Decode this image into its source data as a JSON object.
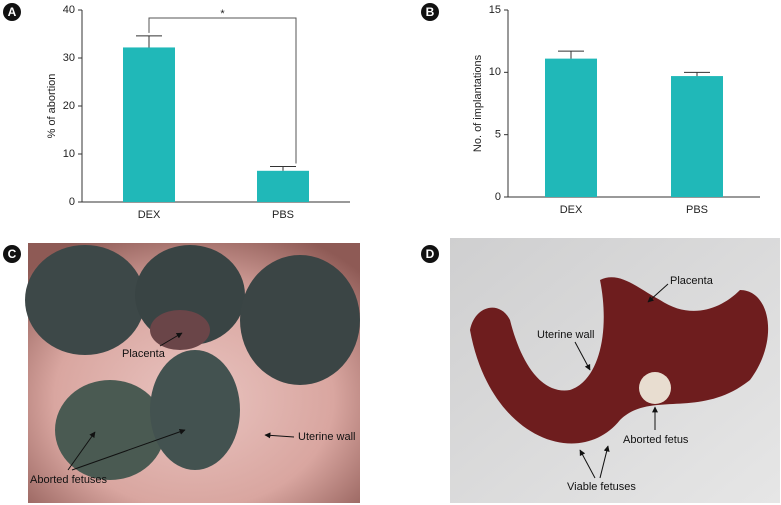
{
  "chart_data": [
    {
      "type": "bar",
      "panel": "A",
      "ylabel": "% of abortion",
      "categories": [
        "DEX",
        "PBS"
      ],
      "values": [
        32.2,
        6.5
      ],
      "errors": [
        2.4,
        0.9
      ],
      "color": "#20b8b8",
      "ylim": [
        0,
        40
      ],
      "yticks": [
        0,
        10,
        20,
        30,
        40
      ],
      "annotations": [
        "*"
      ]
    },
    {
      "type": "bar",
      "panel": "B",
      "ylabel": "No. of implantations",
      "categories": [
        "DEX",
        "PBS"
      ],
      "values": [
        11.1,
        9.7
      ],
      "errors": [
        0.6,
        0.3
      ],
      "color": "#20b8b8",
      "ylim": [
        0,
        15
      ],
      "yticks": [
        0,
        5,
        10,
        15
      ]
    }
  ],
  "photos": [
    {
      "panel": "C",
      "annotations": [
        "Placenta",
        "Uterine wall",
        "Aborted fetuses"
      ]
    },
    {
      "panel": "D",
      "annotations": [
        "Placenta",
        "Uterine wall",
        "Aborted fetus",
        "Viable fetuses"
      ]
    }
  ]
}
